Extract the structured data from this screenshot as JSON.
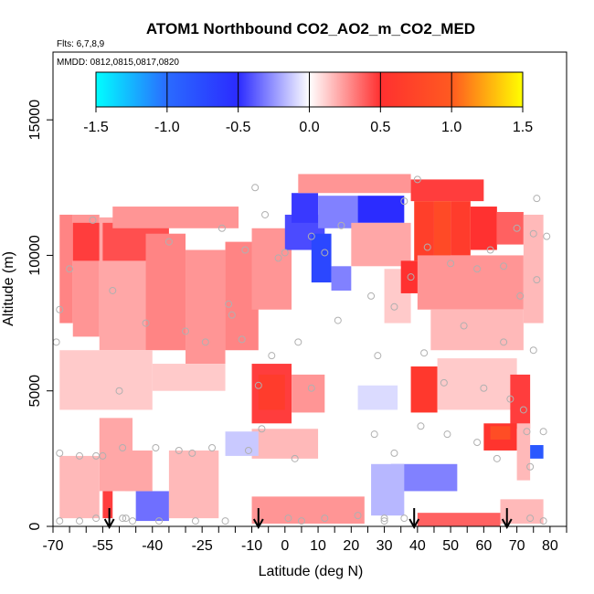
{
  "chart_data": {
    "type": "heatmap",
    "title": "ATOM1 Northbound CO2_AO2_m_CO2_MED",
    "flights_label": "Flts: 6,7,8,9",
    "dates_label": "MMDD: 0812,0815,0817,0820",
    "xlabel": "Latitude (deg N)",
    "ylabel": "Altitude (m)",
    "xlim": [
      -70,
      85
    ],
    "ylim": [
      0,
      17500
    ],
    "x_ticks": [
      -70,
      -55,
      -40,
      -25,
      -10,
      0,
      10,
      20,
      30,
      40,
      50,
      60,
      70,
      80
    ],
    "x_tick_labels": [
      "-70",
      "-55",
      "-40",
      "-25",
      "-10",
      "0",
      "10",
      "20",
      "30",
      "40",
      "50",
      "60",
      "70",
      "80"
    ],
    "x_minor_ticks": [
      -65,
      -60,
      -50,
      -45,
      -35,
      -30,
      -20,
      -15,
      -5,
      5,
      15,
      25,
      35,
      45,
      55,
      65,
      75,
      85
    ],
    "y_ticks": [
      0,
      5000,
      10000,
      15000
    ],
    "y_tick_labels": [
      "0",
      "5000",
      "10000",
      "15000"
    ],
    "colorbar": {
      "range": [
        -1.5,
        1.5
      ],
      "ticks": [
        -1.5,
        -1.0,
        -0.5,
        0.0,
        0.5,
        1.0,
        1.5
      ],
      "tick_labels": [
        "-1.5",
        "-1.0",
        "-0.5",
        "0.0",
        "0.5",
        "1.0",
        "1.5"
      ],
      "colors": [
        "#00ffff",
        "#2a6bff",
        "#2b2bff",
        "#ffffff",
        "#ff3030",
        "#ff5a20",
        "#ffff00"
      ]
    },
    "arrows_latitude": [
      -53,
      -8,
      39,
      67
    ],
    "cells": [
      {
        "x0": -68,
        "x1": -64,
        "y0": 7500,
        "y1": 11500,
        "v": 0.35
      },
      {
        "x0": -64,
        "x1": -56,
        "y0": 7000,
        "y1": 11500,
        "v": 0.3
      },
      {
        "x0": -64,
        "x1": -56,
        "y0": 9800,
        "y1": 11200,
        "v": 0.55
      },
      {
        "x0": -56,
        "x1": -42,
        "y0": 6500,
        "y1": 11400,
        "v": 0.25
      },
      {
        "x0": -55,
        "x1": -35,
        "y0": 9800,
        "y1": 11200,
        "v": 0.5
      },
      {
        "x0": -42,
        "x1": -30,
        "y0": 6500,
        "y1": 10800,
        "v": 0.35
      },
      {
        "x0": -30,
        "x1": -18,
        "y0": 6000,
        "y1": 10200,
        "v": 0.3
      },
      {
        "x0": -18,
        "x1": -8,
        "y0": 6500,
        "y1": 10500,
        "v": 0.35
      },
      {
        "x0": -10,
        "x1": 2,
        "y0": 8000,
        "y1": 11000,
        "v": 0.3
      },
      {
        "x0": -52,
        "x1": -14,
        "y0": 11000,
        "y1": 11800,
        "v": 0.3
      },
      {
        "x0": -68,
        "x1": -40,
        "y0": 4300,
        "y1": 6500,
        "v": 0.15
      },
      {
        "x0": -40,
        "x1": -18,
        "y0": 5000,
        "y1": 6000,
        "v": 0.15
      },
      {
        "x0": -10,
        "x1": 2,
        "y0": 3800,
        "y1": 6000,
        "v": 0.55
      },
      {
        "x0": -8,
        "x1": 0,
        "y0": 4300,
        "y1": 5600,
        "v": 0.75
      },
      {
        "x0": 2,
        "x1": 12,
        "y0": 4200,
        "y1": 5600,
        "v": 0.3
      },
      {
        "x0": -10,
        "x1": 10,
        "y0": 2500,
        "y1": 3600,
        "v": 0.2
      },
      {
        "x0": 0,
        "x1": 12,
        "y0": 10200,
        "y1": 11500,
        "v": -0.5
      },
      {
        "x0": 8,
        "x1": 14,
        "y0": 9000,
        "y1": 10800,
        "v": -0.85
      },
      {
        "x0": 14,
        "x1": 20,
        "y0": 8700,
        "y1": 9600,
        "v": -0.35
      },
      {
        "x0": 2,
        "x1": 10,
        "y0": 11200,
        "y1": 12300,
        "v": -0.55
      },
      {
        "x0": 10,
        "x1": 22,
        "y0": 11000,
        "y1": 12200,
        "v": -0.35
      },
      {
        "x0": 22,
        "x1": 36,
        "y0": 11200,
        "y1": 12200,
        "v": -0.6
      },
      {
        "x0": 20,
        "x1": 38,
        "y0": 9600,
        "y1": 11200,
        "v": 0.25
      },
      {
        "x0": 30,
        "x1": 38,
        "y0": 7500,
        "y1": 9500,
        "v": 0.15
      },
      {
        "x0": 35,
        "x1": 44,
        "y0": 8600,
        "y1": 9800,
        "v": 0.6
      },
      {
        "x0": 4,
        "x1": 38,
        "y0": 12300,
        "y1": 13000,
        "v": 0.3
      },
      {
        "x0": 38,
        "x1": 60,
        "y0": 12000,
        "y1": 12800,
        "v": 0.55
      },
      {
        "x0": 39,
        "x1": 45,
        "y0": 9800,
        "y1": 12000,
        "v": 0.8
      },
      {
        "x0": 45,
        "x1": 50,
        "y0": 9800,
        "y1": 12000,
        "v": 0.95
      },
      {
        "x0": 50,
        "x1": 56,
        "y0": 10000,
        "y1": 12000,
        "v": 0.75
      },
      {
        "x0": 56,
        "x1": 64,
        "y0": 10200,
        "y1": 11800,
        "v": 0.6
      },
      {
        "x0": 64,
        "x1": 72,
        "y0": 10400,
        "y1": 11600,
        "v": 0.45
      },
      {
        "x0": 40,
        "x1": 72,
        "y0": 8000,
        "y1": 10000,
        "v": 0.3
      },
      {
        "x0": 72,
        "x1": 78,
        "y0": 7500,
        "y1": 11500,
        "v": 0.2
      },
      {
        "x0": 44,
        "x1": 72,
        "y0": 6500,
        "y1": 8000,
        "v": 0.2
      },
      {
        "x0": 38,
        "x1": 46,
        "y0": 4200,
        "y1": 5900,
        "v": 0.7
      },
      {
        "x0": 46,
        "x1": 70,
        "y0": 4300,
        "y1": 6200,
        "v": 0.15
      },
      {
        "x0": 68,
        "x1": 74,
        "y0": 3600,
        "y1": 5600,
        "v": 0.55
      },
      {
        "x0": 60,
        "x1": 70,
        "y0": 2800,
        "y1": 3800,
        "v": 0.65
      },
      {
        "x0": 62,
        "x1": 68,
        "y0": 3200,
        "y1": 3700,
        "v": 1.0
      },
      {
        "x0": 70,
        "x1": 74,
        "y0": 1700,
        "y1": 3800,
        "v": 0.2
      },
      {
        "x0": 74,
        "x1": 78,
        "y0": 2500,
        "y1": 3000,
        "v": -1.0
      },
      {
        "x0": 32,
        "x1": 52,
        "y0": 1300,
        "y1": 2300,
        "v": -0.35
      },
      {
        "x0": 26,
        "x1": 36,
        "y0": 400,
        "y1": 2300,
        "v": -0.2
      },
      {
        "x0": -45,
        "x1": -35,
        "y0": 200,
        "y1": 1300,
        "v": -0.4
      },
      {
        "x0": -48,
        "x1": -40,
        "y0": 1300,
        "y1": 2800,
        "v": 0.25
      },
      {
        "x0": -55,
        "x1": -52,
        "y0": 300,
        "y1": 1300,
        "v": 0.55
      },
      {
        "x0": -56,
        "x1": -46,
        "y0": 1300,
        "y1": 4000,
        "v": 0.25
      },
      {
        "x0": -35,
        "x1": -20,
        "y0": 300,
        "y1": 2800,
        "v": 0.2
      },
      {
        "x0": -68,
        "x1": -56,
        "y0": 300,
        "y1": 2600,
        "v": 0.2
      },
      {
        "x0": -10,
        "x1": 24,
        "y0": 100,
        "y1": 1100,
        "v": 0.3
      },
      {
        "x0": 40,
        "x1": 65,
        "y0": 0,
        "y1": 500,
        "v": 0.45
      },
      {
        "x0": 65,
        "x1": 78,
        "y0": 100,
        "y1": 1000,
        "v": 0.2
      },
      {
        "x0": -18,
        "x1": -8,
        "y0": 2600,
        "y1": 3500,
        "v": -0.15
      },
      {
        "x0": 22,
        "x1": 34,
        "y0": 4300,
        "y1": 5200,
        "v": -0.1
      }
    ],
    "points": [
      [
        -69,
        6800
      ],
      [
        -68,
        8000
      ],
      [
        -68,
        2700
      ],
      [
        -68,
        200
      ],
      [
        -65,
        9500
      ],
      [
        -62,
        2600
      ],
      [
        -62,
        200
      ],
      [
        -58,
        11300
      ],
      [
        -57,
        2600
      ],
      [
        -57,
        300
      ],
      [
        -55,
        2600
      ],
      [
        -52,
        8700
      ],
      [
        -50,
        5000
      ],
      [
        -49,
        2900
      ],
      [
        -49,
        300
      ],
      [
        -48,
        300
      ],
      [
        -46,
        200
      ],
      [
        -42,
        7500
      ],
      [
        -39,
        2900
      ],
      [
        -38,
        200
      ],
      [
        -35,
        10500
      ],
      [
        -32,
        2800
      ],
      [
        -30,
        7200
      ],
      [
        -28,
        2700
      ],
      [
        -27,
        200
      ],
      [
        -24,
        6800
      ],
      [
        -22,
        2900
      ],
      [
        -19,
        11000
      ],
      [
        -18,
        200
      ],
      [
        -17,
        8200
      ],
      [
        -16,
        7800
      ],
      [
        -13,
        6900
      ],
      [
        -12,
        10200
      ],
      [
        -11,
        2800
      ],
      [
        -9,
        12500
      ],
      [
        -8,
        5200
      ],
      [
        -7,
        3600
      ],
      [
        -6,
        11500
      ],
      [
        -4,
        6300
      ],
      [
        -2,
        9900
      ],
      [
        0,
        10100
      ],
      [
        1,
        300
      ],
      [
        3,
        2500
      ],
      [
        4,
        6800
      ],
      [
        5,
        200
      ],
      [
        8,
        10700
      ],
      [
        8,
        5100
      ],
      [
        12,
        10100
      ],
      [
        12,
        300
      ],
      [
        16,
        7600
      ],
      [
        17,
        11100
      ],
      [
        22,
        400
      ],
      [
        26,
        8500
      ],
      [
        27,
        3400
      ],
      [
        28,
        6300
      ],
      [
        30,
        300
      ],
      [
        30,
        200
      ],
      [
        33,
        8100
      ],
      [
        33,
        2700
      ],
      [
        36,
        300
      ],
      [
        36,
        12000
      ],
      [
        38,
        9200
      ],
      [
        40,
        12800
      ],
      [
        41,
        3700
      ],
      [
        42,
        6400
      ],
      [
        43,
        10300
      ],
      [
        48,
        5300
      ],
      [
        49,
        3400
      ],
      [
        50,
        9700
      ],
      [
        54,
        7400
      ],
      [
        58,
        9500
      ],
      [
        58,
        3100
      ],
      [
        60,
        5100
      ],
      [
        62,
        10200
      ],
      [
        64,
        2500
      ],
      [
        66,
        9600
      ],
      [
        66,
        6800
      ],
      [
        68,
        4700
      ],
      [
        70,
        11000
      ],
      [
        71,
        8500
      ],
      [
        72,
        4300
      ],
      [
        73,
        3500
      ],
      [
        74,
        300
      ],
      [
        74,
        2200
      ],
      [
        75,
        10800
      ],
      [
        75,
        6500
      ],
      [
        76,
        9100
      ],
      [
        76,
        12100
      ],
      [
        78,
        200
      ],
      [
        78,
        3500
      ],
      [
        79,
        10700
      ]
    ]
  }
}
